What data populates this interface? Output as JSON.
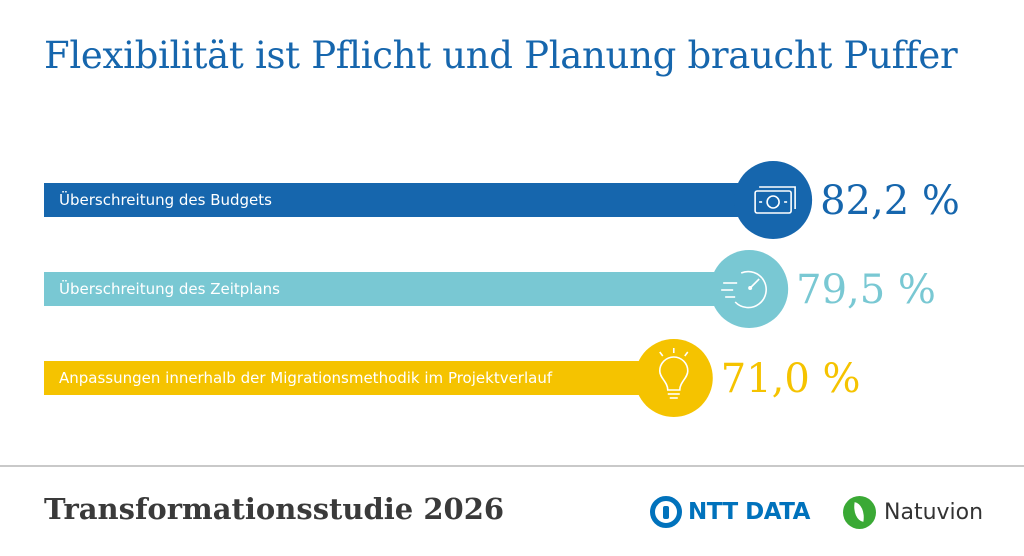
{
  "page_title": "Flexibilität ist Pflicht und Planung braucht Puffer",
  "footer": {
    "study_title": "Transformationsstudie 2026",
    "logo_ntt": "NTT DATA",
    "logo_natuvion": "Natuvion"
  },
  "chart_data": {
    "type": "bar",
    "orientation": "horizontal",
    "title": "Flexibilität ist Pflicht und Planung braucht Puffer",
    "categories": [
      "Überschreitung des Budgets",
      "Überschreitung des Zeitplans",
      "Anpassungen innerhalb der Migrationsmethodik im Projektverlauf"
    ],
    "values": [
      82.2,
      79.5,
      71.0
    ],
    "value_labels": [
      "82,2 %",
      "79,5 %",
      "71,0 %"
    ],
    "icons": [
      "money-icon",
      "stopwatch-icon",
      "lightbulb-icon"
    ],
    "colors": [
      "#1666ad",
      "#79c8d3",
      "#f5c300"
    ],
    "xlim": [
      0,
      100
    ],
    "grid": false,
    "legend": "none"
  }
}
